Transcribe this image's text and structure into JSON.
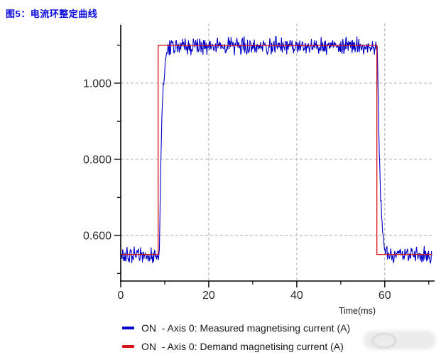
{
  "page": {
    "title": "图5：电流环整定曲线"
  },
  "colors": {
    "title_blue": "#0a0ae0",
    "measured_blue": "#0000c8",
    "demand_red": "#d81414",
    "grid": "#aaaaaa",
    "axis": "#000000",
    "tick_label": "#2b2b2b",
    "legend_text": "#1a1a1a",
    "watermark": "#ececec"
  },
  "legend": {
    "items": [
      {
        "label": "ON  - Axis 0: Measured magnetising current (A)",
        "color": "#0000c8"
      },
      {
        "label": "ON  - Axis 0: Demand magnetising current (A)",
        "color": "#d81414"
      }
    ]
  },
  "chart_data": {
    "type": "line",
    "title": "",
    "xlabel": "Time(ms)",
    "ylabel": "",
    "xlim": [
      0,
      71
    ],
    "ylim": [
      0.48,
      1.157
    ],
    "x_major_ticks": [
      {
        "value": 0,
        "label": "0"
      },
      {
        "value": 20,
        "label": "20"
      },
      {
        "value": 40,
        "label": "40"
      },
      {
        "value": 60,
        "label": "60"
      }
    ],
    "x_minor_ticks": [
      10,
      30,
      50,
      70
    ],
    "y_major_ticks": [
      {
        "value": 0.6,
        "label": "0.600"
      },
      {
        "value": 0.8,
        "label": "0.800"
      },
      {
        "value": 1.0,
        "label": "1.000"
      }
    ],
    "y_minor_ticks": [
      0.5,
      0.7,
      0.9,
      1.1
    ],
    "grid": {
      "x_values": [
        0,
        20,
        40,
        60
      ],
      "y_values": [
        0.6,
        0.8,
        1.0
      ],
      "style": "dashed"
    },
    "series": [
      {
        "name": "Measured magnetising current (A)",
        "color": "#0000c8",
        "style": "noisy_step",
        "low": 0.548,
        "high": 1.098,
        "rise_start_ms": 8.8,
        "fall_start_ms": 58.35,
        "time_constant_ms": 0.55,
        "noise_amplitude": 0.026,
        "x_start_ms": 0.1,
        "x_end_ms": 70.7,
        "sample_step_ms": 0.11,
        "seed": 20
      },
      {
        "name": "Demand magnetising current (A)",
        "color": "#d81414",
        "style": "step",
        "points": [
          [
            0.1,
            0.55
          ],
          [
            8.5,
            0.55
          ],
          [
            8.5,
            1.1
          ],
          [
            58.2,
            1.1
          ],
          [
            58.2,
            0.55
          ],
          [
            70.8,
            0.55
          ]
        ]
      }
    ]
  }
}
